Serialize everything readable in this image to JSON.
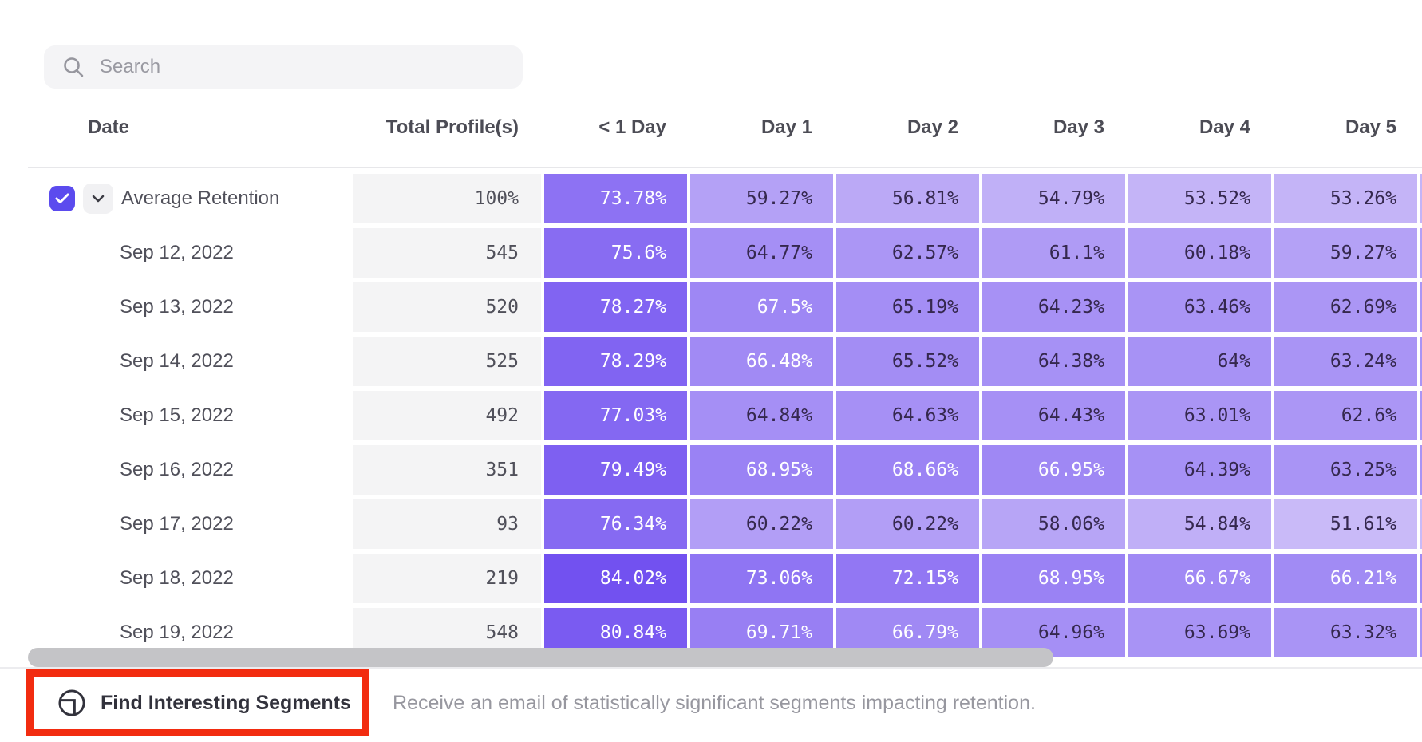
{
  "search": {
    "placeholder": "Search"
  },
  "table": {
    "date_header": "Date",
    "total_header": "Total Profile(s)",
    "day_headers": [
      "< 1 Day",
      "Day 1",
      "Day 2",
      "Day 3",
      "Day 4",
      "Day 5"
    ],
    "rows": [
      {
        "label": "Average Retention",
        "expandable": true,
        "total": "100%",
        "cells": [
          {
            "v": 73.78,
            "d": "73.78%"
          },
          {
            "v": 59.27,
            "d": "59.27%"
          },
          {
            "v": 56.81,
            "d": "56.81%"
          },
          {
            "v": 54.79,
            "d": "54.79%"
          },
          {
            "v": 53.52,
            "d": "53.52%"
          },
          {
            "v": 53.26,
            "d": "53.26%"
          }
        ]
      },
      {
        "label": "Sep 12, 2022",
        "total": "545",
        "cells": [
          {
            "v": 75.6,
            "d": "75.6%"
          },
          {
            "v": 64.77,
            "d": "64.77%"
          },
          {
            "v": 62.57,
            "d": "62.57%"
          },
          {
            "v": 61.1,
            "d": "61.1%"
          },
          {
            "v": 60.18,
            "d": "60.18%"
          },
          {
            "v": 59.27,
            "d": "59.27%"
          }
        ]
      },
      {
        "label": "Sep 13, 2022",
        "total": "520",
        "cells": [
          {
            "v": 78.27,
            "d": "78.27%"
          },
          {
            "v": 67.5,
            "d": "67.5%"
          },
          {
            "v": 65.19,
            "d": "65.19%"
          },
          {
            "v": 64.23,
            "d": "64.23%"
          },
          {
            "v": 63.46,
            "d": "63.46%"
          },
          {
            "v": 62.69,
            "d": "62.69%"
          }
        ]
      },
      {
        "label": "Sep 14, 2022",
        "total": "525",
        "cells": [
          {
            "v": 78.29,
            "d": "78.29%"
          },
          {
            "v": 66.48,
            "d": "66.48%"
          },
          {
            "v": 65.52,
            "d": "65.52%"
          },
          {
            "v": 64.38,
            "d": "64.38%"
          },
          {
            "v": 64,
            "d": "64%"
          },
          {
            "v": 63.24,
            "d": "63.24%"
          }
        ]
      },
      {
        "label": "Sep 15, 2022",
        "total": "492",
        "cells": [
          {
            "v": 77.03,
            "d": "77.03%"
          },
          {
            "v": 64.84,
            "d": "64.84%"
          },
          {
            "v": 64.63,
            "d": "64.63%"
          },
          {
            "v": 64.43,
            "d": "64.43%"
          },
          {
            "v": 63.01,
            "d": "63.01%"
          },
          {
            "v": 62.6,
            "d": "62.6%"
          }
        ]
      },
      {
        "label": "Sep 16, 2022",
        "total": "351",
        "cells": [
          {
            "v": 79.49,
            "d": "79.49%"
          },
          {
            "v": 68.95,
            "d": "68.95%"
          },
          {
            "v": 68.66,
            "d": "68.66%"
          },
          {
            "v": 66.95,
            "d": "66.95%"
          },
          {
            "v": 64.39,
            "d": "64.39%"
          },
          {
            "v": 63.25,
            "d": "63.25%"
          }
        ]
      },
      {
        "label": "Sep 17, 2022",
        "total": "93",
        "cells": [
          {
            "v": 76.34,
            "d": "76.34%"
          },
          {
            "v": 60.22,
            "d": "60.22%"
          },
          {
            "v": 60.22,
            "d": "60.22%"
          },
          {
            "v": 58.06,
            "d": "58.06%"
          },
          {
            "v": 54.84,
            "d": "54.84%"
          },
          {
            "v": 51.61,
            "d": "51.61%"
          }
        ]
      },
      {
        "label": "Sep 18, 2022",
        "total": "219",
        "cells": [
          {
            "v": 84.02,
            "d": "84.02%"
          },
          {
            "v": 73.06,
            "d": "73.06%"
          },
          {
            "v": 72.15,
            "d": "72.15%"
          },
          {
            "v": 68.95,
            "d": "68.95%"
          },
          {
            "v": 66.67,
            "d": "66.67%"
          },
          {
            "v": 66.21,
            "d": "66.21%"
          }
        ]
      },
      {
        "label": "Sep 19, 2022",
        "total": "548",
        "cells": [
          {
            "v": 80.84,
            "d": "80.84%"
          },
          {
            "v": 69.71,
            "d": "69.71%"
          },
          {
            "v": 66.79,
            "d": "66.79%"
          },
          {
            "v": 64.96,
            "d": "64.96%"
          },
          {
            "v": 63.69,
            "d": "63.69%"
          },
          {
            "v": 63.32,
            "d": "63.32%"
          }
        ]
      }
    ]
  },
  "footer": {
    "button_label": "Find Interesting Segments",
    "description": "Receive an email of statistically significant segments impacting retention."
  },
  "colors": {
    "accent_checkbox": "#5b4bee",
    "cell_scale_low": "#cdbff8",
    "cell_scale_high": "#6f4ef0",
    "scale_domain": [
      50,
      85
    ],
    "white_text_threshold": 66,
    "cell_text_dark": "#35284e",
    "cell_text_light": "#ffffff",
    "total_cell_bg": "#f4f4f5",
    "annotation_red": "#f22c10",
    "scrollbar_thumb": "#c4c4c7"
  }
}
